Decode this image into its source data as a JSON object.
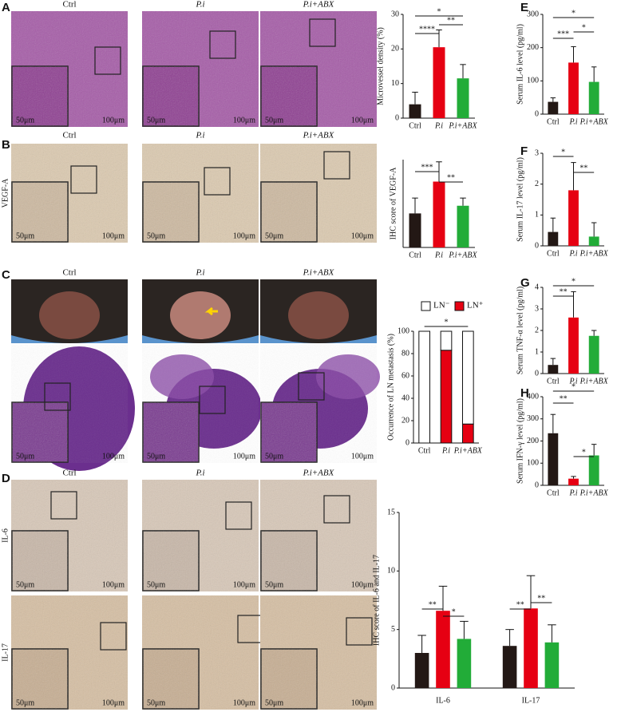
{
  "figure": {
    "panel_letters": [
      "A",
      "B",
      "C",
      "D",
      "E",
      "F",
      "G",
      "H"
    ],
    "groups": [
      "Ctrl",
      "P.i",
      "P.i+ABX"
    ],
    "row_labels": [
      "VEGF-A",
      "IL-6",
      "IL-17"
    ],
    "scale_small": "50μm",
    "scale_large": "100μm"
  },
  "chart_data": [
    {
      "type": "bar",
      "ylabel": "Microvessel density (%)",
      "categories": [
        "Ctrl",
        "P.i",
        "P.i+ABX"
      ],
      "values": [
        4,
        20.5,
        11.5
      ],
      "errors": [
        3.5,
        5,
        4
      ],
      "colors": [
        "#231815",
        "#e60012",
        "#22ac38"
      ],
      "ylim": [
        0,
        30
      ],
      "yticks": [
        0,
        10,
        20,
        30
      ],
      "annotations": [
        "*",
        "**",
        "****"
      ]
    },
    {
      "type": "bar",
      "ylabel": "IHC score of VEGF-A",
      "categories": [
        "Ctrl",
        "P.i",
        "P.i+ABX"
      ],
      "values": [
        3.1,
        6,
        3.8
      ],
      "errors": [
        1.4,
        1.8,
        0.7
      ],
      "colors": [
        "#231815",
        "#e60012",
        "#22ac38"
      ],
      "ylim": [
        0,
        8
      ],
      "annotations": [
        "***",
        "**"
      ]
    },
    {
      "type": "stacked_bar",
      "ylabel": "Occurrence of LN metastasis (%)",
      "categories": [
        "Ctrl",
        "P.i",
        "P.i+ABX"
      ],
      "series": [
        {
          "name": "LN⁻",
          "color": "#ffffff",
          "values": [
            100,
            17,
            83
          ]
        },
        {
          "name": "LN⁺",
          "color": "#e60012",
          "values": [
            0,
            83,
            17
          ]
        }
      ],
      "legend": "top",
      "ylim": [
        0,
        100
      ],
      "yticks": [
        0,
        20,
        40,
        60,
        80,
        100
      ],
      "annotations": [
        "*"
      ]
    },
    {
      "type": "grouped_bar",
      "ylabel": "IHC score of IL-6 and IL-17",
      "categories": [
        "IL-6",
        "IL-17"
      ],
      "series": [
        {
          "color": "#231815",
          "values": [
            3.0,
            3.6
          ],
          "errors": [
            1.5,
            1.4
          ]
        },
        {
          "color": "#e60012",
          "values": [
            6.6,
            6.8
          ],
          "errors": [
            2.1,
            2.8
          ]
        },
        {
          "color": "#22ac38",
          "values": [
            4.2,
            3.9
          ],
          "errors": [
            1.5,
            1.5
          ]
        }
      ],
      "ylim": [
        0,
        15
      ],
      "yticks": [
        0,
        5,
        10,
        15
      ],
      "annotations": [
        "**",
        "*",
        "**",
        "**"
      ]
    },
    {
      "type": "bar",
      "ylabel": "Serum IL-6 level (pg/ml)",
      "categories": [
        "Ctrl",
        "P.i",
        "P.i+ABX"
      ],
      "values": [
        37,
        155,
        97
      ],
      "errors": [
        12,
        48,
        45
      ],
      "colors": [
        "#231815",
        "#e60012",
        "#22ac38"
      ],
      "ylim": [
        0,
        300
      ],
      "yticks": [
        0,
        100,
        200,
        300
      ],
      "annotations": [
        "*",
        "*",
        "***"
      ]
    },
    {
      "type": "bar",
      "ylabel": "Serum IL-17 level (pg/ml)",
      "categories": [
        "Ctrl",
        "P.i",
        "P.i+ABX"
      ],
      "values": [
        0.45,
        1.8,
        0.3
      ],
      "errors": [
        0.45,
        0.9,
        0.45
      ],
      "colors": [
        "#231815",
        "#e60012",
        "#22ac38"
      ],
      "ylim": [
        0,
        3
      ],
      "yticks": [
        0,
        1,
        2,
        3
      ],
      "annotations": [
        "*",
        "**"
      ]
    },
    {
      "type": "bar",
      "ylabel": "Serum TNF-α level (pg/ml)",
      "categories": [
        "Ctrl",
        "P.i",
        "P.i+ABX"
      ],
      "values": [
        0.4,
        2.6,
        1.75
      ],
      "errors": [
        0.3,
        1.2,
        0.25
      ],
      "colors": [
        "#231815",
        "#e60012",
        "#22ac38"
      ],
      "ylim": [
        0,
        4
      ],
      "yticks": [
        0,
        1,
        2,
        3,
        4
      ],
      "annotations": [
        "*",
        "**"
      ]
    },
    {
      "type": "bar",
      "ylabel": "Serum IFN-γ level (pg/ml)",
      "categories": [
        "Ctrl",
        "P.i",
        "P.i+ABX"
      ],
      "values": [
        235,
        30,
        135
      ],
      "errors": [
        85,
        10,
        50
      ],
      "colors": [
        "#231815",
        "#e60012",
        "#22ac38"
      ],
      "ylim": [
        0,
        400
      ],
      "yticks": [
        0,
        100,
        200,
        300,
        400
      ],
      "annotations": [
        "*",
        "**",
        "*"
      ]
    }
  ]
}
